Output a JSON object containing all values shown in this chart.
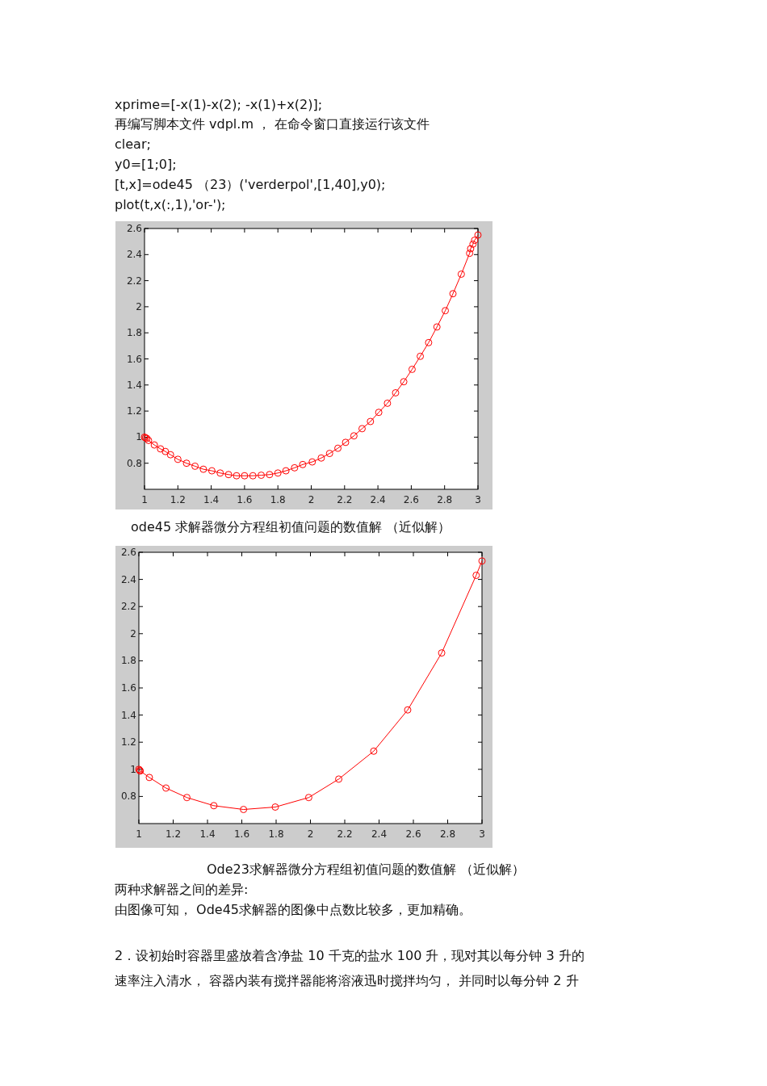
{
  "chart_data": [
    {
      "type": "line",
      "title": "ode45 求解器微分方程组初值问题的数值解 （近似解）",
      "annotations": [
        "xprime=[-x(1)-x(2); -x(1)+x(2)];",
        "再编写脚本文件 vdpl.m ， 在命令窗口直接运行该文件",
        "clear;",
        "y0=[1;0];",
        "[t,x]=ode45 （23）('verderpol',[1,40],y0);",
        "plot(t,x(:,1),'or-');"
      ],
      "xlim": [
        1,
        3
      ],
      "ylim": [
        0.6,
        2.6
      ],
      "xticks": [
        1,
        1.2,
        1.4,
        1.6,
        1.8,
        2,
        2.2,
        2.4,
        2.6,
        2.8,
        3
      ],
      "yticks": [
        0.8,
        1,
        1.2,
        1.4,
        1.6,
        1.8,
        2,
        2.2,
        2.4,
        2.6
      ],
      "marker": "circle",
      "line_style": "solid",
      "grid": false,
      "series": [
        {
          "color": "#ff0000",
          "x": [
            1.0,
            1.006,
            1.014,
            1.024,
            1.059,
            1.096,
            1.125,
            1.156,
            1.2,
            1.252,
            1.303,
            1.353,
            1.404,
            1.454,
            1.504,
            1.552,
            1.6,
            1.65,
            1.7,
            1.75,
            1.8,
            1.848,
            1.9,
            1.949,
            2.006,
            2.06,
            2.11,
            2.16,
            2.206,
            2.256,
            2.305,
            2.355,
            2.405,
            2.457,
            2.506,
            2.555,
            2.605,
            2.654,
            2.704,
            2.754,
            2.804,
            2.85,
            2.9,
            2.95,
            2.956,
            2.97,
            2.98,
            3.0
          ],
          "values": [
            1.0,
            0.995,
            0.99,
            0.975,
            0.94,
            0.91,
            0.89,
            0.865,
            0.83,
            0.8,
            0.777,
            0.754,
            0.742,
            0.725,
            0.713,
            0.704,
            0.704,
            0.704,
            0.708,
            0.713,
            0.725,
            0.742,
            0.765,
            0.79,
            0.81,
            0.84,
            0.875,
            0.915,
            0.96,
            1.01,
            1.065,
            1.12,
            1.19,
            1.26,
            1.34,
            1.425,
            1.52,
            1.62,
            1.725,
            1.845,
            1.97,
            2.1,
            2.25,
            2.41,
            2.445,
            2.48,
            2.51,
            2.55
          ]
        }
      ]
    },
    {
      "type": "line",
      "title": "Ode23求解器微分方程组初值问题的数值解 （近似解）",
      "annotations": [
        "两种求解器之间的差异:",
        "由图像可知， Ode45求解器的图像中点数比较多，更加精确。",
        "2．设初始时容器里盛放着含净盐 10 千克的盐水 100 升，现对其以每分钟 3 升的",
        "速率注入清水， 容器内装有搅拌器能将溶液迅时搅拌均匀， 并同时以每分钟 2 升"
      ],
      "xlim": [
        1,
        3
      ],
      "ylim": [
        0.6,
        2.6
      ],
      "xticks": [
        1,
        1.2,
        1.4,
        1.6,
        1.8,
        2,
        2.2,
        2.4,
        2.6,
        2.8,
        3
      ],
      "yticks": [
        0.8,
        1,
        1.2,
        1.4,
        1.6,
        1.8,
        2,
        2.2,
        2.4,
        2.6
      ],
      "marker": "circle",
      "line_style": "solid",
      "grid": false,
      "series": [
        {
          "color": "#ff0000",
          "x": [
            1.0,
            1.005,
            1.008,
            1.061,
            1.158,
            1.28,
            1.437,
            1.61,
            1.795,
            1.99,
            2.165,
            2.369,
            2.567,
            2.765,
            2.966,
            3.0
          ],
          "values": [
            1.0,
            0.992,
            0.988,
            0.94,
            0.862,
            0.792,
            0.732,
            0.704,
            0.722,
            0.792,
            0.928,
            1.134,
            1.438,
            1.858,
            2.43,
            2.536
          ]
        }
      ]
    }
  ]
}
